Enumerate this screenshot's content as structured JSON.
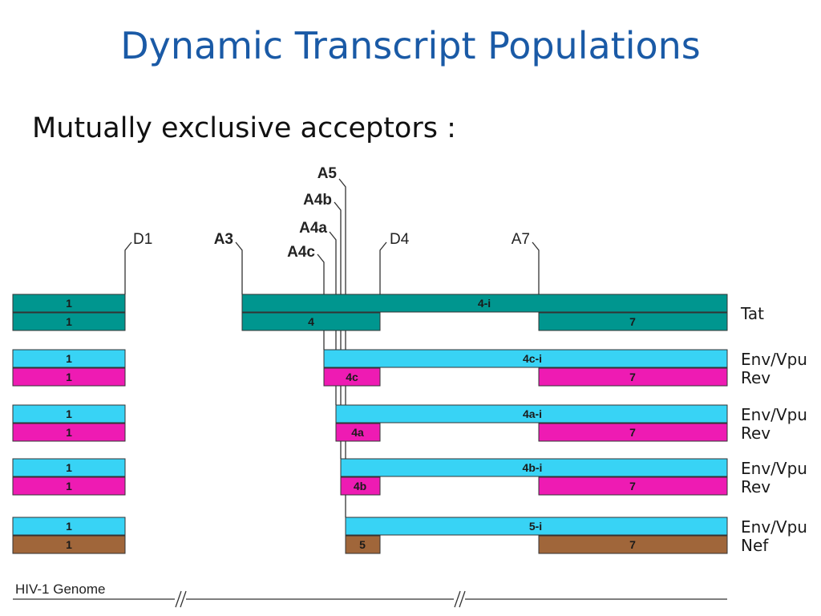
{
  "title": "Dynamic Transcript Populations",
  "subtitle": "Mutually exclusive acceptors :",
  "colors": {
    "teal": "#00968f",
    "cyan": "#38d3f5",
    "magenta": "#ee1bb3",
    "brown": "#a0663a",
    "title": "#1a5aa6",
    "line": "#333333"
  },
  "sites": {
    "D1": "D1",
    "A3": "A3",
    "A5": "A5",
    "A4b": "A4b",
    "A4a": "A4a",
    "A4c": "A4c",
    "D4": "D4",
    "A7": "A7"
  },
  "transcripts": [
    {
      "top_label": "Tat",
      "bottom_label": "",
      "top_exons": [
        "1",
        "4-i"
      ],
      "bottom_exons": [
        "1",
        "4",
        "7"
      ]
    },
    {
      "top_label": "Env/Vpu",
      "bottom_label": "Rev",
      "top_exons": [
        "1",
        "4c-i"
      ],
      "bottom_exons": [
        "1",
        "4c",
        "7"
      ]
    },
    {
      "top_label": "Env/Vpu",
      "bottom_label": "Rev",
      "top_exons": [
        "1",
        "4a-i"
      ],
      "bottom_exons": [
        "1",
        "4a",
        "7"
      ]
    },
    {
      "top_label": "Env/Vpu",
      "bottom_label": "Rev",
      "top_exons": [
        "1",
        "4b-i"
      ],
      "bottom_exons": [
        "1",
        "4b",
        "7"
      ]
    },
    {
      "top_label": "Env/Vpu",
      "bottom_label": "Nef",
      "top_exons": [
        "1",
        "5-i"
      ],
      "bottom_exons": [
        "1",
        "5",
        "7"
      ]
    }
  ],
  "genome_label": "HIV-1 Genome"
}
